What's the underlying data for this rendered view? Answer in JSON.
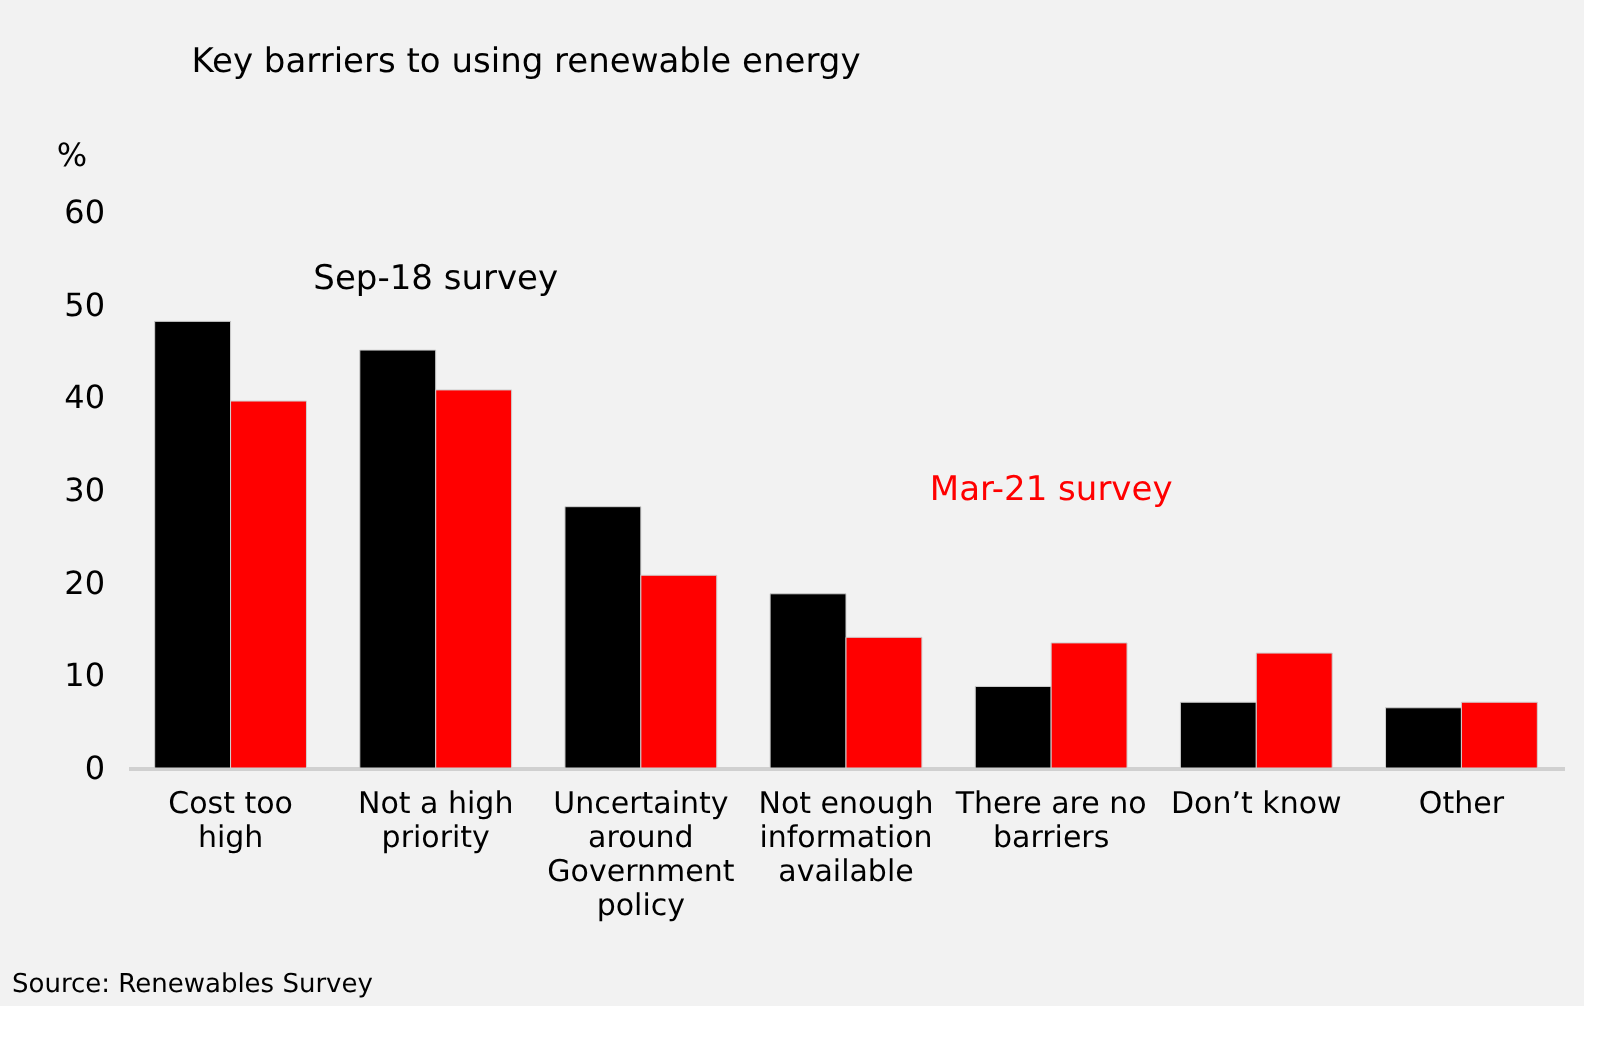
{
  "chart_data": {
    "type": "bar",
    "title": "Key barriers to using renewable energy",
    "ylabel": "%",
    "categories": [
      "Cost too high",
      "Not a high priority",
      "Uncertainty around Government policy",
      "Not enough information available",
      "There are no barriers",
      "Don’t know",
      "Other"
    ],
    "series": [
      {
        "name": "Sep-18  survey",
        "color": "#000000",
        "values": [
          48.2,
          45.1,
          28.2,
          18.8,
          8.8,
          7.1,
          6.5
        ]
      },
      {
        "name": "Mar-21 survey",
        "color": "#ff0000",
        "values": [
          39.6,
          40.8,
          20.8,
          14.1,
          13.5,
          12.4,
          7.1
        ]
      }
    ],
    "ylim": [
      0,
      60
    ],
    "yticks": [
      0,
      10,
      20,
      30,
      40,
      50,
      60
    ],
    "grid": false,
    "legend": false,
    "annotations": [
      "Source: Renewables Survey"
    ]
  }
}
